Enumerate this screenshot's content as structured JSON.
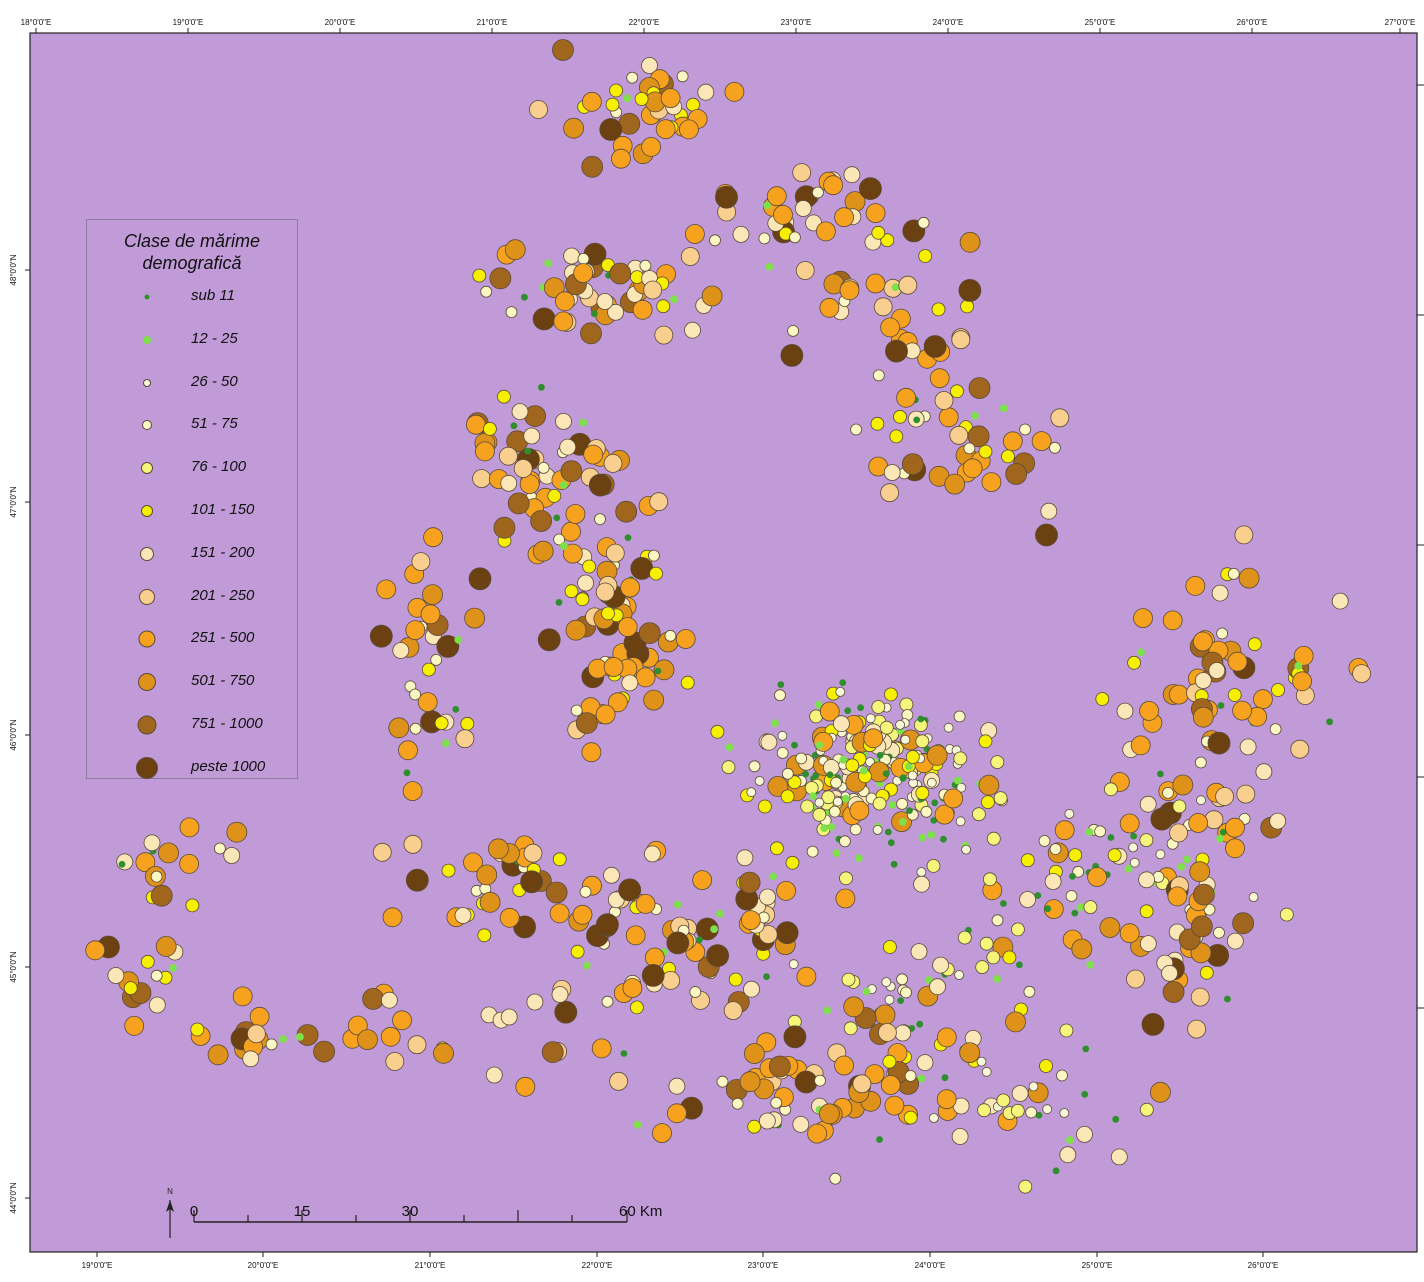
{
  "map": {
    "background_color": "#c19bd7",
    "top_lon_labels": [
      "18°0'0\"E",
      "19°0'0\"E",
      "20°0'0\"E",
      "21°0'0\"E",
      "22°0'0\"E",
      "23°0'0\"E",
      "24°0'0\"E",
      "25°0'0\"E",
      "26°0'0\"E",
      "27°0'0\"E"
    ],
    "bottom_lon_labels": [
      "19°0'0\"E",
      "20°0'0\"E",
      "21°0'0\"E",
      "22°0'0\"E",
      "23°0'0\"E",
      "24°0'0\"E",
      "25°0'0\"E",
      "26°0'0\"E"
    ],
    "lat_labels": [
      "48°0'0\"N",
      "47°0'0\"N",
      "46°0'0\"N",
      "45°0'0\"N",
      "44°0'0\"N"
    ]
  },
  "legend": {
    "title_line1": "Clase de mărime",
    "title_line2": "demografică",
    "classes": [
      {
        "label": "sub 11",
        "color": "#2f8f2f"
      },
      {
        "label": "12 - 25",
        "color": "#7ee04a"
      },
      {
        "label": "26 - 50",
        "color": "#f7f7d8"
      },
      {
        "label": "51 - 75",
        "color": "#fbf7c2"
      },
      {
        "label": "76 - 100",
        "color": "#f4f57a"
      },
      {
        "label": "101 - 150",
        "color": "#f6f000"
      },
      {
        "label": "151 - 200",
        "color": "#fbe6b8"
      },
      {
        "label": "201 - 250",
        "color": "#f9cf90"
      },
      {
        "label": "251 - 500",
        "color": "#f6a21e"
      },
      {
        "label": "501 - 750",
        "color": "#df921a"
      },
      {
        "label": "751 - 1000",
        "color": "#a0661e"
      },
      {
        "label": "peste 1000",
        "color": "#6b4112"
      }
    ]
  },
  "scale_bar": {
    "north_label": "N",
    "labels": [
      "0",
      "15",
      "30",
      "60 Km"
    ]
  }
}
